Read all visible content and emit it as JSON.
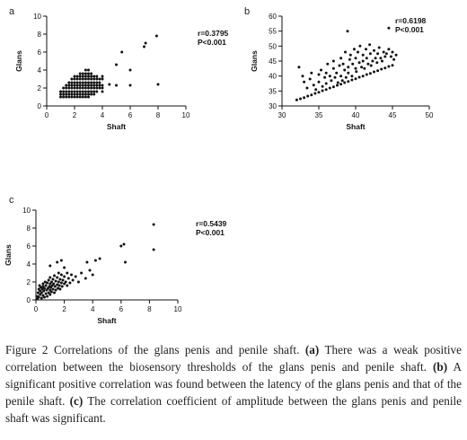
{
  "chart_data": [
    {
      "panel_label": "a",
      "type": "scatter",
      "xlabel": "Shaft",
      "ylabel": "Glans",
      "xlim": [
        0,
        10
      ],
      "ylim": [
        0,
        10
      ],
      "xticks": [
        "0",
        "2",
        "4",
        "6",
        "8",
        "10"
      ],
      "yticks": [
        "0",
        "2",
        "4",
        "6",
        "8",
        "10"
      ],
      "annotation": [
        "r=0.3795",
        "P<0.001"
      ],
      "grid": false,
      "points": [
        [
          1,
          1
        ],
        [
          1,
          1.3
        ],
        [
          1,
          1.6
        ],
        [
          1.2,
          1
        ],
        [
          1.2,
          1.3
        ],
        [
          1.2,
          1.6
        ],
        [
          1.2,
          2
        ],
        [
          1.4,
          1
        ],
        [
          1.4,
          1.3
        ],
        [
          1.4,
          1.6
        ],
        [
          1.4,
          2
        ],
        [
          1.4,
          2.3
        ],
        [
          1.6,
          1
        ],
        [
          1.6,
          1.3
        ],
        [
          1.6,
          1.6
        ],
        [
          1.6,
          2
        ],
        [
          1.6,
          2.3
        ],
        [
          1.6,
          2.6
        ],
        [
          1.8,
          1
        ],
        [
          1.8,
          1.3
        ],
        [
          1.8,
          1.6
        ],
        [
          1.8,
          2
        ],
        [
          1.8,
          2.3
        ],
        [
          1.8,
          2.6
        ],
        [
          1.8,
          3
        ],
        [
          2,
          1
        ],
        [
          2,
          1.3
        ],
        [
          2,
          1.6
        ],
        [
          2,
          2
        ],
        [
          2,
          2.3
        ],
        [
          2,
          2.6
        ],
        [
          2,
          3
        ],
        [
          2,
          3.3
        ],
        [
          2.2,
          1
        ],
        [
          2.2,
          1.3
        ],
        [
          2.2,
          1.6
        ],
        [
          2.2,
          2
        ],
        [
          2.2,
          2.3
        ],
        [
          2.2,
          2.6
        ],
        [
          2.2,
          3
        ],
        [
          2.2,
          3.3
        ],
        [
          2.4,
          1
        ],
        [
          2.4,
          1.3
        ],
        [
          2.4,
          1.6
        ],
        [
          2.4,
          2
        ],
        [
          2.4,
          2.3
        ],
        [
          2.4,
          2.6
        ],
        [
          2.4,
          3
        ],
        [
          2.4,
          3.3
        ],
        [
          2.4,
          3.6
        ],
        [
          2.6,
          1
        ],
        [
          2.6,
          1.3
        ],
        [
          2.6,
          1.6
        ],
        [
          2.6,
          2
        ],
        [
          2.6,
          2.3
        ],
        [
          2.6,
          2.6
        ],
        [
          2.6,
          3
        ],
        [
          2.6,
          3.3
        ],
        [
          2.6,
          3.6
        ],
        [
          2.8,
          1
        ],
        [
          2.8,
          1.3
        ],
        [
          2.8,
          1.6
        ],
        [
          2.8,
          2
        ],
        [
          2.8,
          2.3
        ],
        [
          2.8,
          2.6
        ],
        [
          2.8,
          3
        ],
        [
          2.8,
          3.3
        ],
        [
          2.8,
          3.6
        ],
        [
          2.8,
          4
        ],
        [
          3,
          1
        ],
        [
          3,
          1.3
        ],
        [
          3,
          1.6
        ],
        [
          3,
          2
        ],
        [
          3,
          2.3
        ],
        [
          3,
          2.6
        ],
        [
          3,
          3
        ],
        [
          3,
          3.3
        ],
        [
          3,
          3.6
        ],
        [
          3,
          4
        ],
        [
          3.2,
          1.3
        ],
        [
          3.2,
          1.6
        ],
        [
          3.2,
          2
        ],
        [
          3.2,
          2.3
        ],
        [
          3.2,
          2.6
        ],
        [
          3.2,
          3
        ],
        [
          3.2,
          3.3
        ],
        [
          3.2,
          3.6
        ],
        [
          3.4,
          1.3
        ],
        [
          3.4,
          1.6
        ],
        [
          3.4,
          2
        ],
        [
          3.4,
          2.3
        ],
        [
          3.4,
          2.6
        ],
        [
          3.4,
          3
        ],
        [
          3.4,
          3.3
        ],
        [
          3.6,
          1.6
        ],
        [
          3.6,
          2
        ],
        [
          3.6,
          2.3
        ],
        [
          3.6,
          2.6
        ],
        [
          3.6,
          3
        ],
        [
          3.6,
          3.3
        ],
        [
          3.8,
          2
        ],
        [
          3.8,
          2.3
        ],
        [
          3.8,
          2.6
        ],
        [
          3.8,
          3
        ],
        [
          4,
          1.6
        ],
        [
          4,
          2
        ],
        [
          4,
          2.3
        ],
        [
          4,
          3
        ],
        [
          4,
          3.3
        ],
        [
          4.5,
          2.4
        ],
        [
          5,
          2.3
        ],
        [
          5,
          4.6
        ],
        [
          5.4,
          6
        ],
        [
          6,
          2.3
        ],
        [
          6,
          4
        ],
        [
          7,
          6.6
        ],
        [
          7.1,
          7
        ],
        [
          7.9,
          7.8
        ],
        [
          8,
          2.4
        ]
      ]
    },
    {
      "panel_label": "b",
      "type": "scatter",
      "xlabel": "Shaft",
      "ylabel": "Glans",
      "xlim": [
        30,
        50
      ],
      "ylim": [
        30,
        60
      ],
      "xticks": [
        "30",
        "35",
        "40",
        "45",
        "50"
      ],
      "yticks": [
        "30",
        "35",
        "40",
        "45",
        "50",
        "55",
        "60"
      ],
      "annotation": [
        "r=0.6198",
        "P<0.001"
      ],
      "grid": false,
      "points": [
        [
          32,
          32
        ],
        [
          32.5,
          32.4
        ],
        [
          33,
          32.8
        ],
        [
          33.5,
          33.3
        ],
        [
          34,
          33.7
        ],
        [
          34.5,
          34.2
        ],
        [
          35,
          34.6
        ],
        [
          35.5,
          35.1
        ],
        [
          36,
          35.5
        ],
        [
          36.5,
          36
        ],
        [
          37,
          36.4
        ],
        [
          37.5,
          36.9
        ],
        [
          38,
          37.3
        ],
        [
          38.5,
          37.8
        ],
        [
          39,
          38.2
        ],
        [
          39.5,
          38.7
        ],
        [
          40,
          39.1
        ],
        [
          40.5,
          39.6
        ],
        [
          41,
          40
        ],
        [
          41.5,
          40.5
        ],
        [
          42,
          40.9
        ],
        [
          42.5,
          41.4
        ],
        [
          43,
          41.8
        ],
        [
          43.5,
          42.3
        ],
        [
          44,
          42.7
        ],
        [
          44.5,
          43.2
        ],
        [
          45,
          43.6
        ],
        [
          32.3,
          43
        ],
        [
          32.8,
          40
        ],
        [
          33,
          38
        ],
        [
          33.4,
          36
        ],
        [
          33.8,
          39
        ],
        [
          34,
          41
        ],
        [
          34.3,
          37
        ],
        [
          34.6,
          35.5
        ],
        [
          35,
          40.5
        ],
        [
          35,
          38
        ],
        [
          35.3,
          42
        ],
        [
          35.5,
          36.5
        ],
        [
          35.8,
          39.5
        ],
        [
          36,
          41
        ],
        [
          36,
          37.5
        ],
        [
          36.2,
          44
        ],
        [
          36.5,
          40
        ],
        [
          36.7,
          38.5
        ],
        [
          37,
          42.5
        ],
        [
          37,
          45
        ],
        [
          37.2,
          39.5
        ],
        [
          37.4,
          41
        ],
        [
          37.6,
          37.8
        ],
        [
          37.8,
          43.5
        ],
        [
          38,
          40
        ],
        [
          38,
          46
        ],
        [
          38.2,
          38.5
        ],
        [
          38.3,
          44
        ],
        [
          38.5,
          42
        ],
        [
          38.6,
          48
        ],
        [
          38.7,
          39.5
        ],
        [
          38.9,
          55
        ],
        [
          39,
          43
        ],
        [
          39,
          41
        ],
        [
          39.2,
          45.5
        ],
        [
          39.3,
          47
        ],
        [
          39.5,
          40
        ],
        [
          39.6,
          44
        ],
        [
          39.8,
          49
        ],
        [
          40,
          42.5
        ],
        [
          40,
          46
        ],
        [
          40.1,
          41.5
        ],
        [
          40.3,
          48
        ],
        [
          40.5,
          44.5
        ],
        [
          40.6,
          50
        ],
        [
          40.8,
          43
        ],
        [
          41,
          47
        ],
        [
          41,
          45
        ],
        [
          41.2,
          42.5
        ],
        [
          41.4,
          49
        ],
        [
          41.5,
          46
        ],
        [
          41.7,
          44
        ],
        [
          41.9,
          50.5
        ],
        [
          42,
          47.5
        ],
        [
          42.1,
          43.5
        ],
        [
          42.3,
          45
        ],
        [
          42.5,
          48.5
        ],
        [
          42.7,
          46
        ],
        [
          42.9,
          44.5
        ],
        [
          43,
          47.5
        ],
        [
          43.2,
          49.5
        ],
        [
          43.4,
          46
        ],
        [
          43.6,
          45
        ],
        [
          43.8,
          48
        ],
        [
          44,
          46.5
        ],
        [
          44.2,
          47.5
        ],
        [
          44.5,
          49
        ],
        [
          44.8,
          46.5
        ],
        [
          45,
          48
        ],
        [
          45.2,
          45.5
        ],
        [
          45.5,
          47
        ],
        [
          44.5,
          56
        ]
      ]
    },
    {
      "panel_label": "c",
      "type": "scatter",
      "xlabel": "Shaft",
      "ylabel": "Glans",
      "xlim": [
        0,
        10
      ],
      "ylim": [
        0,
        10
      ],
      "xticks": [
        "0",
        "2",
        "4",
        "6",
        "8",
        "10"
      ],
      "yticks": [
        "0",
        "2",
        "4",
        "6",
        "8",
        "10"
      ],
      "annotation": [
        "r=0.5439",
        "P<0.001"
      ],
      "grid": false,
      "points": [
        [
          0.1,
          0.1
        ],
        [
          0.1,
          0.4
        ],
        [
          0.15,
          0.8
        ],
        [
          0.2,
          1.2
        ],
        [
          0.2,
          0.3
        ],
        [
          0.25,
          1.6
        ],
        [
          0.3,
          0.6
        ],
        [
          0.3,
          1
        ],
        [
          0.35,
          1.4
        ],
        [
          0.4,
          0.2
        ],
        [
          0.4,
          0.8
        ],
        [
          0.45,
          1.2
        ],
        [
          0.5,
          0.5
        ],
        [
          0.5,
          1.5
        ],
        [
          0.5,
          1.8
        ],
        [
          0.55,
          1
        ],
        [
          0.6,
          0.3
        ],
        [
          0.6,
          1.3
        ],
        [
          0.65,
          2
        ],
        [
          0.7,
          0.7
        ],
        [
          0.7,
          1.6
        ],
        [
          0.75,
          1.1
        ],
        [
          0.8,
          0.4
        ],
        [
          0.8,
          1.9
        ],
        [
          0.85,
          1.3
        ],
        [
          0.9,
          0.8
        ],
        [
          0.9,
          2.2
        ],
        [
          0.95,
          1.5
        ],
        [
          1,
          0.6
        ],
        [
          1,
          1.1
        ],
        [
          1,
          1.8
        ],
        [
          1,
          2.5
        ],
        [
          1.05,
          1.4
        ],
        [
          1.1,
          0.9
        ],
        [
          1.1,
          2
        ],
        [
          1.15,
          1.6
        ],
        [
          1.2,
          1.2
        ],
        [
          1.2,
          2.3
        ],
        [
          1.25,
          1.8
        ],
        [
          1.3,
          0.8
        ],
        [
          1.3,
          2.7
        ],
        [
          1.35,
          1.5
        ],
        [
          1.4,
          2.1
        ],
        [
          1.4,
          1.1
        ],
        [
          1.5,
          1.7
        ],
        [
          1.5,
          2.5
        ],
        [
          1.55,
          1.3
        ],
        [
          1.6,
          2
        ],
        [
          1.6,
          3
        ],
        [
          1.65,
          1.6
        ],
        [
          1.7,
          2.3
        ],
        [
          1.7,
          1.2
        ],
        [
          1.8,
          1.9
        ],
        [
          1.8,
          2.8
        ],
        [
          1.85,
          1.5
        ],
        [
          1.9,
          2.2
        ],
        [
          2,
          1.8
        ],
        [
          2,
          2.6
        ],
        [
          2,
          3.6
        ],
        [
          2.1,
          2
        ],
        [
          2.2,
          1.6
        ],
        [
          2.2,
          3
        ],
        [
          2.3,
          2.4
        ],
        [
          2.4,
          1.9
        ],
        [
          2.5,
          2.8
        ],
        [
          2.6,
          2.2
        ],
        [
          2.8,
          2.6
        ],
        [
          3,
          2
        ],
        [
          3.2,
          3
        ],
        [
          3.5,
          2.4
        ],
        [
          3.6,
          4.2
        ],
        [
          3.8,
          3.3
        ],
        [
          4,
          2.8
        ],
        [
          4.2,
          4.4
        ],
        [
          4.5,
          4.6
        ],
        [
          1.5,
          4.2
        ],
        [
          1.8,
          4.4
        ],
        [
          1,
          3.8
        ],
        [
          6,
          6
        ],
        [
          6.2,
          6.2
        ],
        [
          6.3,
          4.2
        ],
        [
          8.3,
          8.4
        ],
        [
          8.3,
          5.6
        ]
      ]
    }
  ],
  "caption": {
    "figure_label": "Figure 2 Correlations of the glans penis and penile shaft. ",
    "part_a_label": "(a)",
    "part_a_text": " There was a weak positive correlation between the biosensory thresholds of the glans penis and penile shaft. ",
    "part_b_label": "(b)",
    "part_b_text": " A significant positive correlation was found between the latency of the glans penis and that of the penile shaft. ",
    "part_c_label": "(c)",
    "part_c_text": " The correlation coefficient of amplitude between the glans penis and penile shaft was significant."
  }
}
